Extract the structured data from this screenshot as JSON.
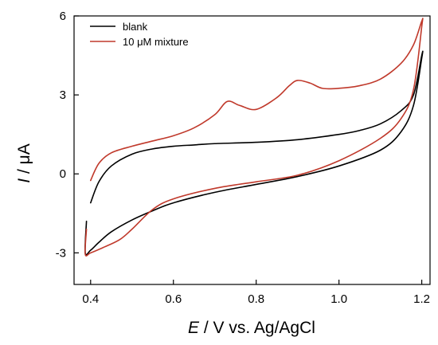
{
  "chart_data": {
    "type": "line",
    "title": "",
    "xlabel_var": "E",
    "xlabel_rest": " / V vs. Ag/AgCl",
    "ylabel_var": "I",
    "ylabel_rest": " / μA",
    "xlim": [
      0.36,
      1.22
    ],
    "ylim": [
      -4.2,
      6.0
    ],
    "xticks": [
      0.4,
      0.6,
      0.8,
      1.0,
      1.2
    ],
    "xtick_labels": [
      "0.4",
      "0.6",
      "0.8",
      "1.0",
      "1.2"
    ],
    "yticks": [
      -3,
      0,
      3,
      6
    ],
    "ytick_labels": [
      "-3",
      "0",
      "3",
      "6"
    ],
    "grid": false,
    "legend_position": "top-left",
    "series": [
      {
        "name": "blank",
        "color": "#000000",
        "x": [
          0.4,
          0.42,
          0.45,
          0.5,
          0.55,
          0.6,
          0.65,
          0.7,
          0.8,
          0.9,
          1.0,
          1.05,
          1.1,
          1.15,
          1.18,
          1.2,
          1.2,
          1.18,
          1.15,
          1.1,
          1.0,
          0.9,
          0.8,
          0.7,
          0.6,
          0.55,
          0.5,
          0.45,
          0.42,
          0.4,
          0.387,
          0.39
        ],
        "y": [
          -1.1,
          -0.3,
          0.3,
          0.75,
          0.95,
          1.05,
          1.1,
          1.15,
          1.2,
          1.3,
          1.5,
          1.65,
          1.9,
          2.4,
          3.0,
          4.5,
          4.4,
          2.6,
          1.6,
          0.9,
          0.3,
          -0.1,
          -0.4,
          -0.7,
          -1.1,
          -1.4,
          -1.75,
          -2.2,
          -2.6,
          -2.9,
          -3.0,
          -1.8
        ]
      },
      {
        "name": "10 μM mixture",
        "color": "#c0392b",
        "x": [
          0.4,
          0.42,
          0.45,
          0.5,
          0.55,
          0.6,
          0.65,
          0.7,
          0.73,
          0.76,
          0.8,
          0.85,
          0.88,
          0.9,
          0.93,
          0.96,
          1.0,
          1.05,
          1.1,
          1.15,
          1.18,
          1.2,
          1.2,
          1.18,
          1.15,
          1.1,
          1.0,
          0.9,
          0.8,
          0.7,
          0.6,
          0.55,
          0.5,
          0.47,
          0.43,
          0.4,
          0.387,
          0.39
        ],
        "y": [
          -0.25,
          0.4,
          0.8,
          1.05,
          1.25,
          1.45,
          1.75,
          2.25,
          2.75,
          2.6,
          2.45,
          2.9,
          3.35,
          3.55,
          3.45,
          3.25,
          3.25,
          3.35,
          3.6,
          4.2,
          4.9,
          5.8,
          5.6,
          3.2,
          2.1,
          1.35,
          0.5,
          -0.05,
          -0.3,
          -0.55,
          -0.95,
          -1.35,
          -2.1,
          -2.5,
          -2.8,
          -3.0,
          -3.05,
          -2.1
        ]
      }
    ]
  }
}
